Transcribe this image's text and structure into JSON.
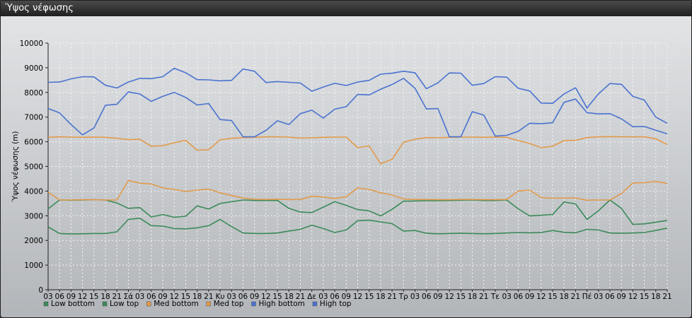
{
  "window_title": "Ύψος νέφωσης",
  "chart_data": {
    "type": "line",
    "ylabel": "Ύψος νέφωσης (m)",
    "ylim": [
      0,
      10000
    ],
    "yticks": [
      0,
      1000,
      2000,
      3000,
      4000,
      5000,
      6000,
      7000,
      8000,
      9000,
      10000
    ],
    "grid": true,
    "legend_position": "bottom-left",
    "categories": [
      "03",
      "06",
      "09",
      "12",
      "15",
      "18",
      "21",
      "Σά",
      "03",
      "06",
      "09",
      "12",
      "15",
      "18",
      "21",
      "Κυ",
      "03",
      "06",
      "09",
      "12",
      "15",
      "18",
      "21",
      "Δε",
      "03",
      "06",
      "09",
      "12",
      "15",
      "18",
      "21",
      "Τρ",
      "03",
      "06",
      "09",
      "12",
      "15",
      "18",
      "21",
      "Τε",
      "03",
      "06",
      "09",
      "12",
      "15",
      "18",
      "21",
      "Πέ",
      "03",
      "06",
      "09",
      "12",
      "15",
      "18",
      "21"
    ],
    "series": [
      {
        "name": "Low bottom",
        "color": "#3a8a5a",
        "values": [
          2550,
          2280,
          2260,
          2270,
          2280,
          2280,
          2350,
          2850,
          2900,
          2600,
          2580,
          2480,
          2470,
          2510,
          2600,
          2850,
          2560,
          2300,
          2280,
          2280,
          2300,
          2380,
          2450,
          2620,
          2480,
          2320,
          2420,
          2800,
          2820,
          2750,
          2680,
          2380,
          2400,
          2290,
          2270,
          2280,
          2290,
          2280,
          2270,
          2280,
          2300,
          2320,
          2310,
          2320,
          2400,
          2330,
          2310,
          2450,
          2420,
          2300,
          2290,
          2300,
          2320,
          2400,
          2500
        ]
      },
      {
        "name": "Low top",
        "color": "#3a8a5a",
        "values": [
          3280,
          3640,
          3630,
          3640,
          3650,
          3640,
          3520,
          3300,
          3330,
          2950,
          3050,
          2940,
          2980,
          3400,
          3270,
          3500,
          3570,
          3640,
          3620,
          3620,
          3620,
          3300,
          3150,
          3130,
          3350,
          3570,
          3420,
          3250,
          3200,
          2990,
          3260,
          3590,
          3600,
          3610,
          3610,
          3620,
          3630,
          3640,
          3620,
          3620,
          3640,
          3280,
          2990,
          3020,
          3050,
          3560,
          3480,
          2850,
          3200,
          3640,
          3300,
          2650,
          2670,
          2740,
          2810
        ]
      },
      {
        "name": "Med bottom",
        "color": "#e29a4a",
        "values": [
          6180,
          6200,
          6190,
          6180,
          6190,
          6180,
          6140,
          6090,
          6100,
          5820,
          5840,
          5960,
          6060,
          5660,
          5680,
          6080,
          6140,
          6170,
          6180,
          6200,
          6200,
          6190,
          6150,
          6160,
          6180,
          6190,
          6190,
          5760,
          5830,
          5110,
          5290,
          5980,
          6100,
          6170,
          6160,
          6180,
          6190,
          6190,
          6180,
          6190,
          6180,
          6050,
          5930,
          5760,
          5820,
          6050,
          6060,
          6170,
          6200,
          6210,
          6200,
          6200,
          6200,
          6120,
          5890
        ]
      },
      {
        "name": "Med top",
        "color": "#e29a4a",
        "values": [
          3960,
          3640,
          3640,
          3650,
          3650,
          3640,
          3640,
          4430,
          4320,
          4290,
          4130,
          4070,
          3980,
          4040,
          4080,
          3930,
          3820,
          3720,
          3670,
          3660,
          3670,
          3660,
          3660,
          3790,
          3760,
          3700,
          3770,
          4130,
          4070,
          3930,
          3840,
          3680,
          3660,
          3660,
          3650,
          3650,
          3660,
          3660,
          3650,
          3650,
          3660,
          4000,
          4040,
          3740,
          3710,
          3720,
          3720,
          3630,
          3640,
          3640,
          3900,
          4330,
          4340,
          4390,
          4310
        ]
      },
      {
        "name": "High bottom",
        "color": "#4a72d0",
        "values": [
          7350,
          7170,
          6700,
          6280,
          6560,
          7480,
          7520,
          8020,
          7940,
          7640,
          7840,
          8000,
          7800,
          7490,
          7550,
          6900,
          6860,
          6200,
          6200,
          6460,
          6850,
          6700,
          7140,
          7280,
          6960,
          7320,
          7420,
          7920,
          7900,
          8130,
          8320,
          8570,
          8170,
          7330,
          7350,
          6200,
          6200,
          7220,
          7080,
          6230,
          6260,
          6420,
          6750,
          6730,
          6770,
          7600,
          7730,
          7180,
          7130,
          7140,
          6930,
          6610,
          6620,
          6470,
          6320
        ]
      },
      {
        "name": "High top",
        "color": "#4a72d0",
        "values": [
          8410,
          8420,
          8550,
          8640,
          8630,
          8290,
          8180,
          8420,
          8570,
          8560,
          8640,
          8980,
          8800,
          8520,
          8510,
          8470,
          8490,
          8950,
          8860,
          8400,
          8440,
          8410,
          8380,
          8050,
          8220,
          8370,
          8280,
          8420,
          8490,
          8740,
          8780,
          8860,
          8800,
          8150,
          8390,
          8790,
          8780,
          8290,
          8360,
          8640,
          8620,
          8170,
          8060,
          7570,
          7560,
          7940,
          8190,
          7370,
          7940,
          8360,
          8330,
          7840,
          7690,
          7000,
          6750
        ]
      }
    ]
  }
}
